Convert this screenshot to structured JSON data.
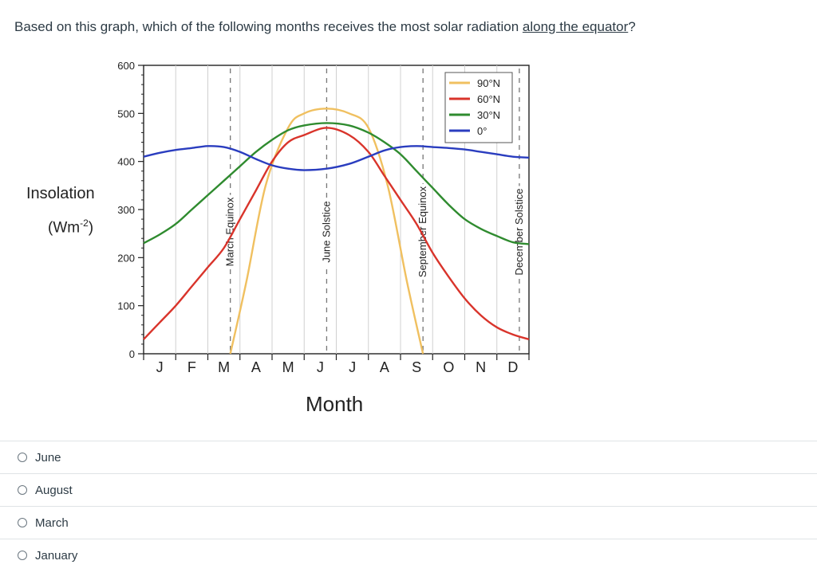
{
  "question": {
    "prefix": "Based on this graph, which of the following months receives the most solar radiation ",
    "underlined": "along the equator",
    "suffix": "?"
  },
  "options": [
    {
      "label": "June"
    },
    {
      "label": "August"
    },
    {
      "label": "March"
    },
    {
      "label": "January"
    }
  ],
  "chart_data": {
    "type": "line",
    "ylabel": "Insolation",
    "ylabel_unit_base": "(Wm",
    "ylabel_unit_sup": "-2",
    "ylabel_unit_close": ")",
    "xlabel": "Month",
    "ylim": [
      0,
      600
    ],
    "yticks": [
      "0",
      "100",
      "200",
      "300",
      "400",
      "500",
      "600"
    ],
    "categories": [
      "J",
      "F",
      "M",
      "A",
      "M",
      "J",
      "J",
      "A",
      "S",
      "O",
      "N",
      "D"
    ],
    "events": [
      {
        "label": "March Equinox",
        "month": 2.7
      },
      {
        "label": "June Solstice",
        "month": 5.7
      },
      {
        "label": "September Equinox",
        "month": 8.7
      },
      {
        "label": "December Solstice",
        "month": 11.7
      }
    ],
    "legend_position": "top-right",
    "series": [
      {
        "name": "90°N",
        "color": "#f0c060",
        "x": [
          2.7,
          3.2,
          3.8,
          4.5,
          5.0,
          5.7,
          6.4,
          7.0,
          7.6,
          8.2,
          8.7
        ],
        "values": [
          0,
          150,
          350,
          470,
          500,
          510,
          500,
          470,
          350,
          150,
          0
        ]
      },
      {
        "name": "60°N",
        "color": "#d9342b",
        "x": [
          0,
          0.5,
          1.0,
          1.5,
          2.0,
          2.5,
          3.0,
          3.5,
          4.0,
          4.5,
          5.0,
          5.7,
          6.4,
          7.0,
          7.5,
          8.0,
          8.5,
          9.0,
          9.5,
          10.0,
          10.5,
          11.0,
          11.5,
          12.0
        ],
        "values": [
          30,
          65,
          100,
          140,
          180,
          220,
          280,
          340,
          400,
          440,
          455,
          470,
          455,
          420,
          370,
          320,
          270,
          210,
          160,
          115,
          80,
          55,
          40,
          30
        ]
      },
      {
        "name": "30°N",
        "color": "#2f8b2f",
        "x": [
          0,
          0.5,
          1.0,
          1.5,
          2.0,
          2.5,
          3.0,
          3.5,
          4.0,
          4.5,
          5.0,
          5.7,
          6.4,
          7.0,
          7.5,
          8.0,
          8.5,
          9.0,
          9.5,
          10.0,
          10.5,
          11.0,
          11.5,
          12.0
        ],
        "values": [
          230,
          248,
          270,
          300,
          330,
          360,
          390,
          420,
          445,
          465,
          475,
          480,
          475,
          460,
          440,
          415,
          380,
          345,
          310,
          280,
          260,
          245,
          232,
          228
        ]
      },
      {
        "name": "0°",
        "color": "#2a3dbf",
        "x": [
          0,
          0.5,
          1.0,
          1.5,
          2.0,
          2.5,
          3.0,
          3.5,
          4.0,
          4.5,
          5.0,
          5.7,
          6.4,
          7.0,
          7.5,
          8.0,
          8.5,
          9.0,
          9.5,
          10.0,
          10.5,
          11.0,
          11.5,
          12.0
        ],
        "values": [
          410,
          418,
          424,
          428,
          432,
          430,
          420,
          405,
          392,
          385,
          382,
          385,
          395,
          410,
          423,
          430,
          432,
          430,
          428,
          425,
          420,
          415,
          410,
          408
        ]
      }
    ]
  }
}
